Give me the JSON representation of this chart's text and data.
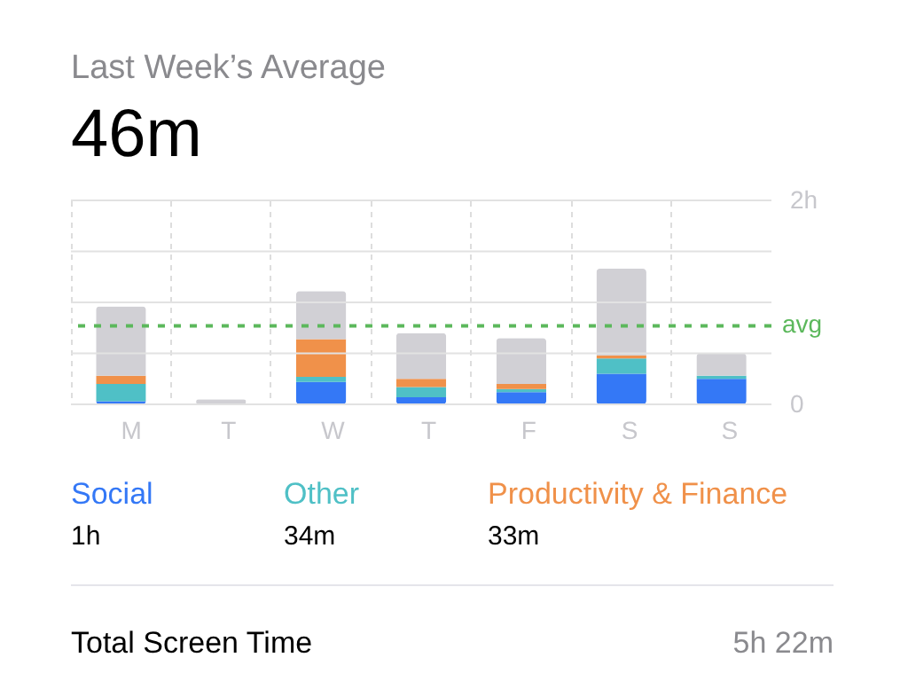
{
  "chart_data": {
    "type": "bar",
    "title": "Last Week’s Average",
    "subtitle": "46m",
    "categories": [
      "M",
      "T",
      "W",
      "T",
      "F",
      "S",
      "S"
    ],
    "stacked": true,
    "series": [
      {
        "name": "Social",
        "color": "#3478f6",
        "values": [
          0.03,
          0,
          0.22,
          0.07,
          0.12,
          0.3,
          0.25
        ]
      },
      {
        "name": "Other",
        "color": "#4fc0c6",
        "values": [
          0.17,
          0,
          0.05,
          0.1,
          0.03,
          0.15,
          0.03
        ]
      },
      {
        "name": "Productivity & Finance",
        "color": "#f0914a",
        "values": [
          0.08,
          null,
          0.37,
          0.08,
          0.05,
          0.03,
          0
        ]
      },
      {
        "color": "#d1d0d5",
        "values": [
          0.68,
          0.05,
          0.47,
          0.45,
          0.45,
          0.85,
          0.22
        ]
      }
    ],
    "ylim": [
      0,
      2
    ],
    "yticks": [
      {
        "value": 0,
        "label": "0"
      },
      {
        "value": 0.5,
        "label": null
      },
      {
        "value": 1,
        "label": null
      },
      {
        "value": 1.5,
        "label": null
      },
      {
        "value": 2,
        "label": "2h"
      }
    ],
    "ref_lines": [
      {
        "axis": "y",
        "value": 0.77,
        "label": "avg",
        "color": "#5cb85c",
        "line_style": "dashed"
      }
    ],
    "grid": true,
    "legend": "bottom",
    "annotations": [
      "1h",
      "34m",
      "33m",
      "Total Screen Time",
      "5h 22m"
    ]
  }
}
